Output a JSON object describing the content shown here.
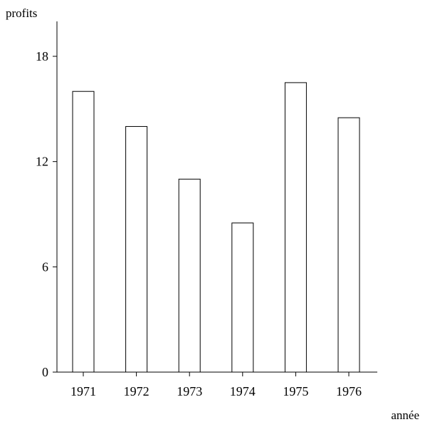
{
  "chart_data": {
    "type": "bar",
    "title": "",
    "ylabel": "profits",
    "xlabel": "année",
    "categories": [
      "1971",
      "1972",
      "1973",
      "1974",
      "1975",
      "1976"
    ],
    "values": [
      16.0,
      14.0,
      11.0,
      8.5,
      16.5,
      14.5
    ],
    "ylim": [
      0,
      18
    ],
    "yticks": [
      0,
      6,
      12,
      18
    ],
    "grid": false,
    "legend": "none",
    "colors": {
      "bar_fill": "#ffffff",
      "bar_stroke": "#000000",
      "axis": "#000000"
    }
  }
}
